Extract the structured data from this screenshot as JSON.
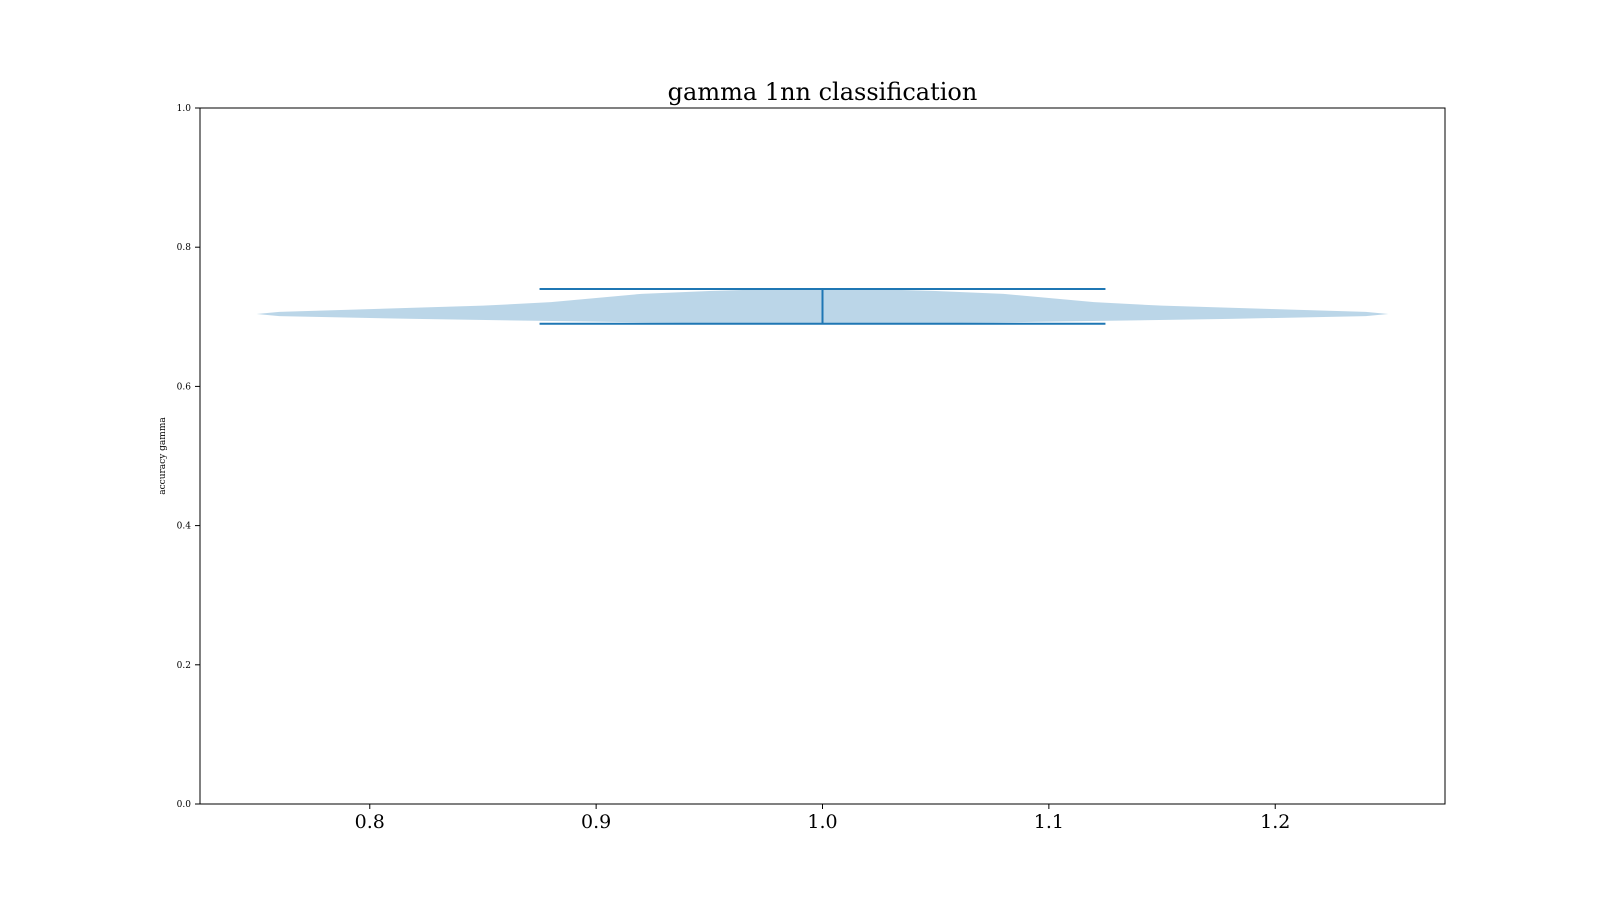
{
  "chart_data": {
    "type": "violin",
    "title": "gamma 1nn classification",
    "xlabel": "",
    "ylabel": "accuracy gamma",
    "xlim": [
      0.725,
      1.275
    ],
    "ylim": [
      0.0,
      1.0
    ],
    "x_ticks": [
      0.8,
      0.9,
      1.0,
      1.1,
      1.2
    ],
    "x_tick_labels": [
      "0.8",
      "0.9",
      "1.0",
      "1.1",
      "1.2"
    ],
    "y_ticks": [
      0.0,
      0.2,
      0.4,
      0.6,
      0.8,
      1.0
    ],
    "y_tick_labels": [
      "0.0",
      "0.2",
      "0.4",
      "0.6",
      "0.8",
      "1.0"
    ],
    "grid": false,
    "colors": {
      "body_fill": "#1f77b4",
      "body_opacity": 0.3,
      "lines": "#1f77b4"
    },
    "violins": [
      {
        "position": 1.0,
        "min": 0.69,
        "max": 0.74,
        "half_width_max": 0.25,
        "cap_half_width": 0.125,
        "density": [
          {
            "y": 0.69,
            "w": 0.04
          },
          {
            "y": 0.693,
            "w": 0.1
          },
          {
            "y": 0.697,
            "w": 0.18
          },
          {
            "y": 0.701,
            "w": 0.24
          },
          {
            "y": 0.704,
            "w": 0.25
          },
          {
            "y": 0.707,
            "w": 0.24
          },
          {
            "y": 0.711,
            "w": 0.2
          },
          {
            "y": 0.716,
            "w": 0.15
          },
          {
            "y": 0.721,
            "w": 0.12
          },
          {
            "y": 0.727,
            "w": 0.1
          },
          {
            "y": 0.733,
            "w": 0.08
          },
          {
            "y": 0.737,
            "w": 0.05
          },
          {
            "y": 0.74,
            "w": 0.02
          }
        ]
      }
    ]
  }
}
